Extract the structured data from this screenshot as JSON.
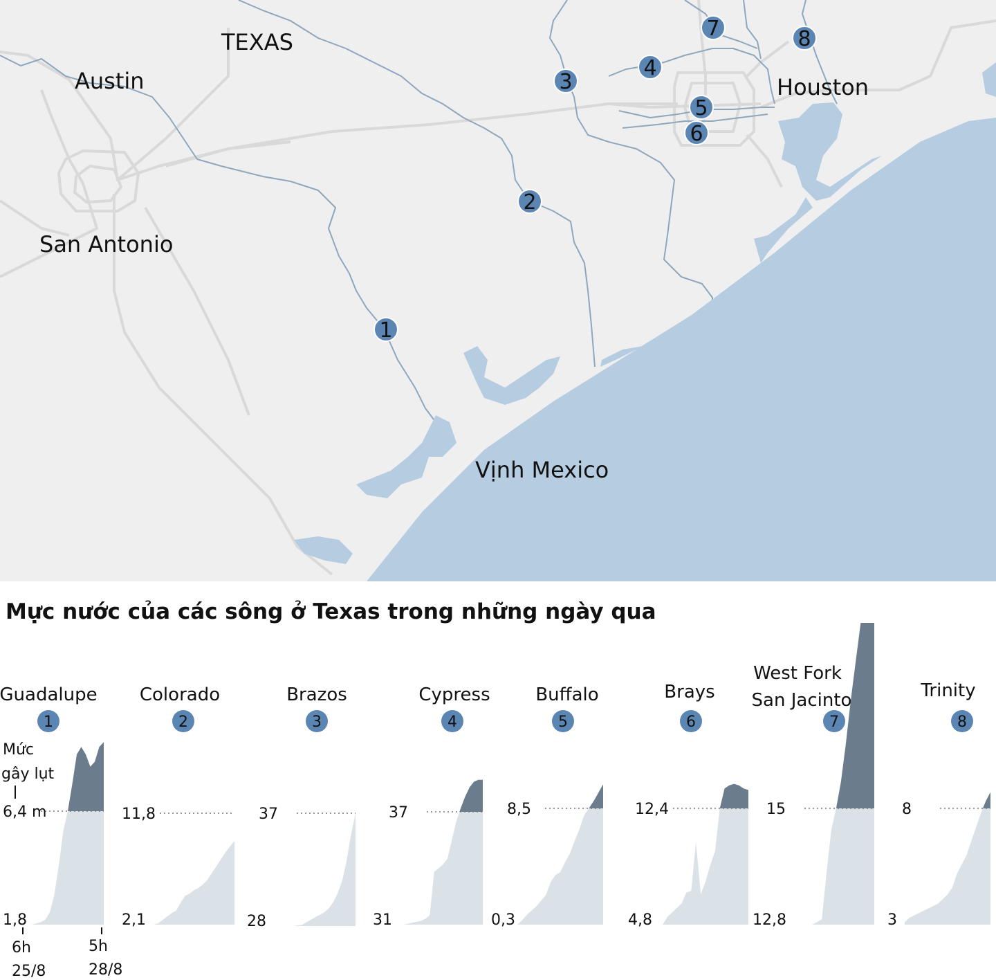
{
  "map": {
    "labels": {
      "texas": "TEXAS",
      "austin": "Austin",
      "san_antonio": "San Antonio",
      "houston": "Houston",
      "gulf": "Vịnh Mexico"
    },
    "markers": [
      "1",
      "2",
      "3",
      "4",
      "5",
      "6",
      "7",
      "8"
    ],
    "colors": {
      "land": "#efefef",
      "water": "#b6cde1",
      "river": "#7f9cb6",
      "road": "#dadada",
      "marker": "#5b86b4"
    }
  },
  "chart_title": "Mực nước của các sông ở Texas trong những ngày qua",
  "flood_note": {
    "line1": "Mức",
    "line2": "gây lụt"
  },
  "time_axis": {
    "start_time": "6h",
    "start_date": "25/8",
    "end_time": "5h",
    "end_date": "28/8"
  },
  "chart_data": {
    "type": "area",
    "title": "Mực nước của các sông ở Texas trong những ngày qua",
    "x_start": "6h 25/8",
    "x_end": "5h 28/8",
    "colors": {
      "below_flood": "#dae1e7",
      "above_flood": "#6b7c8c"
    },
    "rivers": [
      {
        "id": "1",
        "name": "Guadalupe",
        "min_label": "1,8",
        "flood_label": "6,4 m",
        "min": 1.8,
        "flood": 6.4,
        "series": [
          1.8,
          1.8,
          1.8,
          1.85,
          1.9,
          2.0,
          2.3,
          3.0,
          4.2,
          5.6,
          6.4,
          7.5,
          8.7,
          9.0,
          8.7,
          8.2,
          8.4,
          9.0,
          9.2
        ]
      },
      {
        "id": "2",
        "name": "Colorado",
        "min_label": "2,1",
        "flood_label": "11,8",
        "min": 2.1,
        "flood": 11.8,
        "series": [
          2.1,
          2.2,
          2.5,
          2.8,
          3.1,
          3.3,
          4.0,
          4.6,
          4.8,
          5.1,
          5.3,
          5.6,
          6.0,
          6.6,
          7.2,
          7.8,
          8.4,
          8.9,
          9.4
        ]
      },
      {
        "id": "3",
        "name": "Brazos",
        "min_label": "28",
        "flood_label": "37",
        "min": 28,
        "flood": 37,
        "series": [
          28,
          28,
          28,
          28,
          28,
          28.05,
          28.1,
          28.3,
          28.5,
          28.7,
          28.9,
          29.1,
          29.4,
          29.9,
          30.6,
          31.6,
          33.2,
          35.3,
          37
        ]
      },
      {
        "id": "4",
        "name": "Cypress",
        "min_label": "31",
        "flood_label": "37",
        "min": 31,
        "flood": 37,
        "series": [
          31,
          31.05,
          31.1,
          31.15,
          31.2,
          31.3,
          31.5,
          33.8,
          34.0,
          34.2,
          34.5,
          35.5,
          36.5,
          37.2,
          37.8,
          38.3,
          38.6,
          38.7,
          38.7
        ]
      },
      {
        "id": "5",
        "name": "Buffalo",
        "min_label": "0,3",
        "flood_label": "8,5",
        "min": 0.3,
        "flood": 8.5,
        "series": [
          0.3,
          0.6,
          1.0,
          1.3,
          1.6,
          2.0,
          2.4,
          3.3,
          3.8,
          4.0,
          4.7,
          5.3,
          6.2,
          7.0,
          8.0,
          8.5,
          9.0,
          9.6,
          10.2
        ]
      },
      {
        "id": "6",
        "name": "Brays",
        "min_label": "4,8",
        "flood_label": "12,4",
        "min": 4.8,
        "flood": 12.4,
        "series": [
          4.8,
          5.3,
          5.6,
          5.9,
          6.2,
          6.9,
          7.0,
          10.2,
          6.8,
          7.6,
          8.7,
          9.6,
          12.4,
          13.7,
          13.9,
          14.0,
          13.9,
          13.7,
          13.6
        ]
      },
      {
        "id": "7",
        "name": "West Fork San Jacinto",
        "name_line1": "West Fork",
        "name_line2": "San Jacinto",
        "min_label": "12,8",
        "flood_label": "15",
        "min": 12.8,
        "flood": 15,
        "series": [
          12.8,
          12.8,
          12.8,
          12.8,
          12.8,
          12.8,
          12.85,
          12.9,
          13.8,
          14.6,
          15.0,
          15.5,
          16.2,
          17.0,
          17.7,
          18.4,
          19.1,
          19.7,
          20.3
        ]
      },
      {
        "id": "8",
        "name": "Trinity",
        "min_label": "3",
        "flood_label": "8",
        "min": 3,
        "flood": 8,
        "series": [
          3.1,
          3.3,
          3.4,
          3.5,
          3.6,
          3.7,
          3.8,
          3.9,
          4.1,
          4.3,
          4.6,
          5.2,
          5.6,
          6.0,
          6.6,
          7.2,
          7.8,
          8.3,
          8.7
        ]
      }
    ]
  }
}
